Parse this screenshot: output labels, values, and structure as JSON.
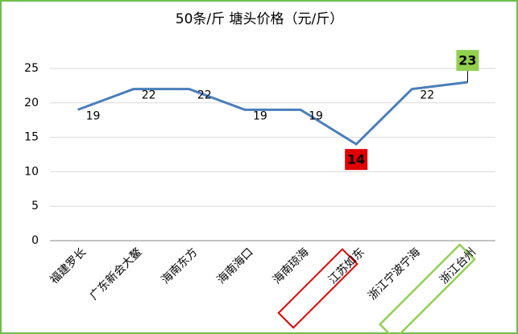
{
  "chart_data": {
    "type": "line",
    "title": "50条/斤  塘头价格（元/斤）",
    "categories": [
      "福建罗长",
      "广东新会大鳌",
      "海南东方",
      "海南海口",
      "海南琼海",
      "江苏如东",
      "浙江宁波宁海",
      "浙江台州"
    ],
    "values": [
      19,
      22,
      22,
      19,
      19,
      14,
      22,
      23
    ],
    "color": "#4a7ebb",
    "ylim": [
      0,
      25
    ],
    "yticks": [
      0,
      5,
      10,
      15,
      20,
      25
    ],
    "grid": true
  }
}
